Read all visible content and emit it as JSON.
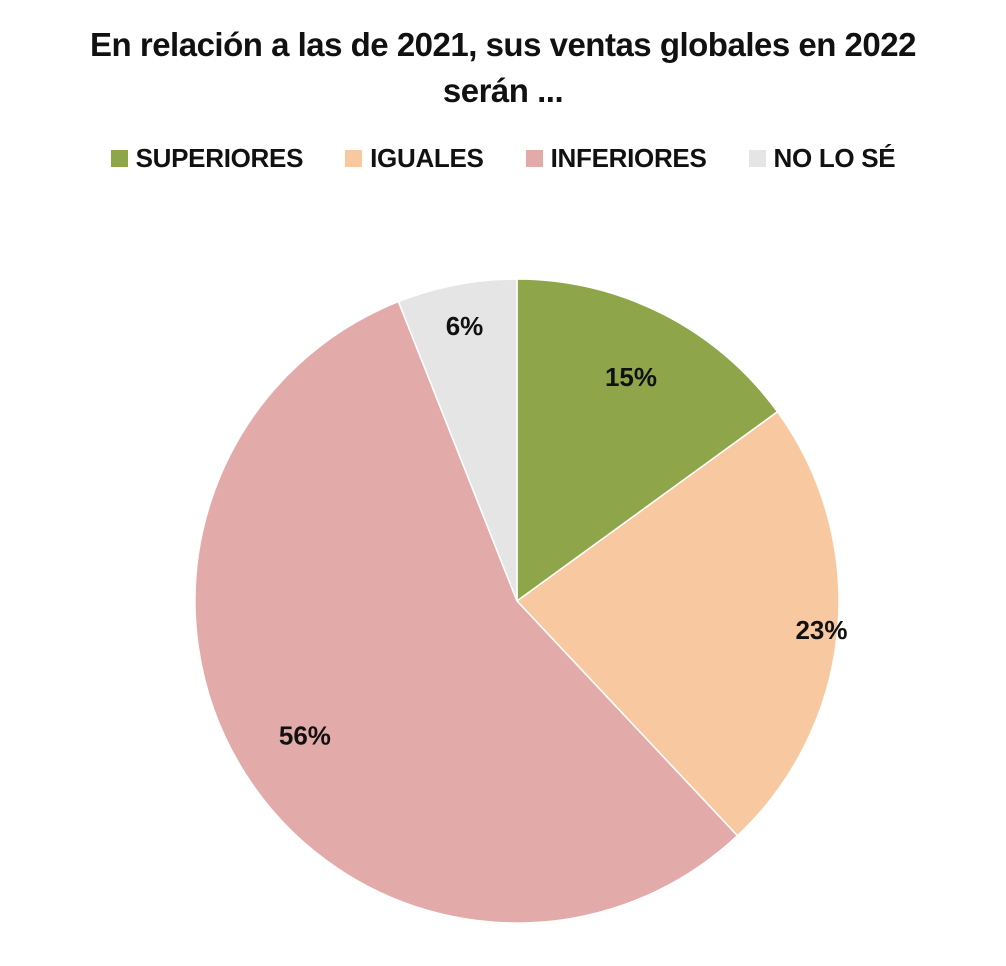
{
  "chart_data": {
    "type": "pie",
    "title": "En relación a las de 2021, sus ventas globales en 2022 serán ...",
    "title_lines": [
      "En relación a las de 2021, sus ventas globales en 2022",
      "serán ..."
    ],
    "categories": [
      "SUPERIORES",
      "IGUALES",
      "INFERIORES",
      "NO LO SÉ"
    ],
    "values": [
      15,
      23,
      56,
      6
    ],
    "data_labels": [
      "15%",
      "23%",
      "56%",
      "6%"
    ],
    "colors": [
      "#8fa54a",
      "#f8c8a0",
      "#e2aaa8",
      "#e5e5e5"
    ],
    "start_angle_deg": 0,
    "direction": "clockwise",
    "legend_position": "top"
  }
}
